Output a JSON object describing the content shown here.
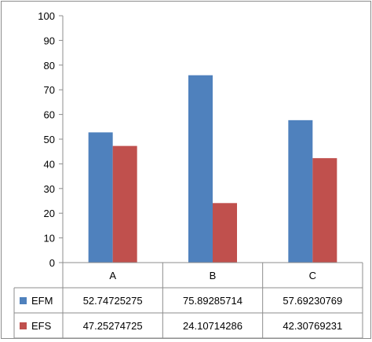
{
  "chart_data": {
    "type": "bar",
    "categories": [
      "A",
      "B",
      "C"
    ],
    "series": [
      {
        "name": "EFM",
        "color": "#4f81bd",
        "values": [
          52.74725275,
          75.89285714,
          57.69230769
        ]
      },
      {
        "name": "EFS",
        "color": "#c0504d",
        "values": [
          47.25274725,
          24.10714286,
          42.30769231
        ]
      }
    ],
    "ylim": [
      0,
      100
    ],
    "yticks": [
      0,
      10,
      20,
      30,
      40,
      50,
      60,
      70,
      80,
      90,
      100
    ],
    "grid": false,
    "legend": "data-table",
    "data_table": {
      "rows": [
        {
          "series": "EFM",
          "cells": [
            "52.74725275",
            "75.89285714",
            "57.69230769"
          ]
        },
        {
          "series": "EFS",
          "cells": [
            "47.25274725",
            "24.10714286",
            "42.30769231"
          ]
        }
      ]
    }
  }
}
